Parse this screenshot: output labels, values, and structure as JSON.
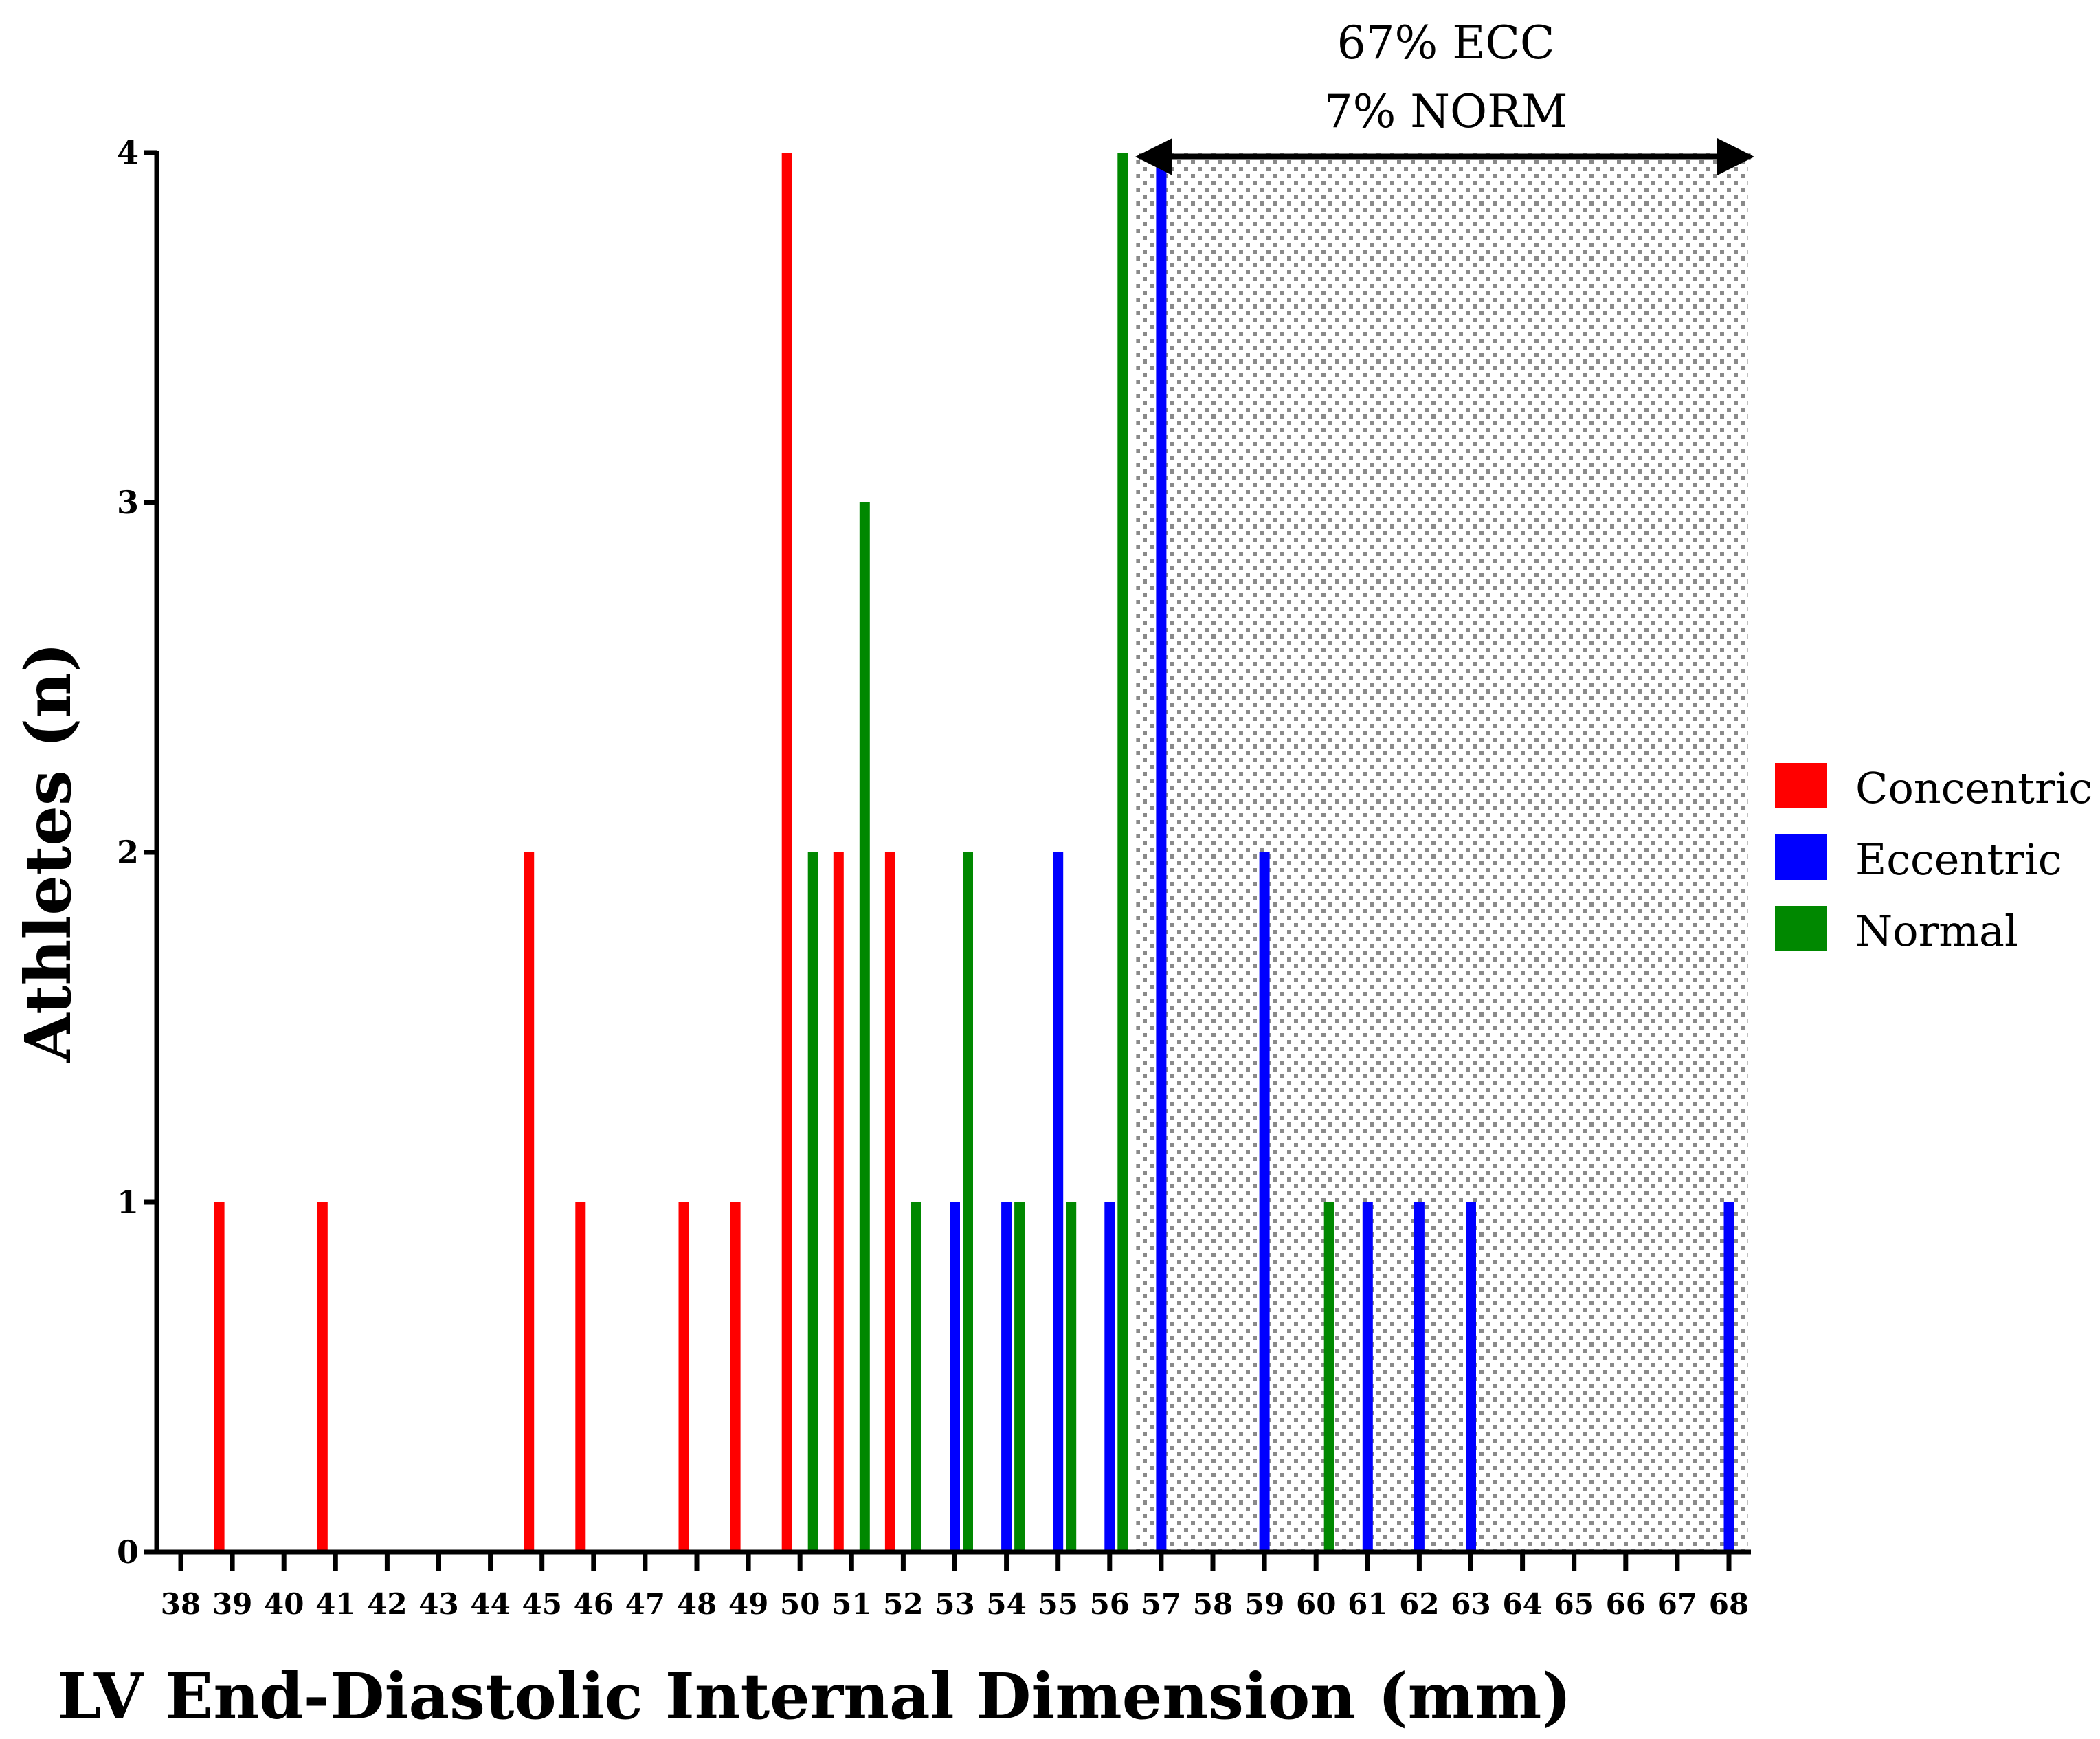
{
  "chart_data": {
    "type": "bar",
    "title": "",
    "xlabel": "LV End-Diastolic Internal Dimension (mm)",
    "ylabel": "Athletes (n)",
    "ylim": [
      0,
      4
    ],
    "yticks": [
      "0",
      "1",
      "2",
      "3",
      "4"
    ],
    "categories": [
      "38",
      "39",
      "40",
      "41",
      "42",
      "43",
      "44",
      "45",
      "46",
      "47",
      "48",
      "49",
      "50",
      "51",
      "52",
      "53",
      "54",
      "55",
      "56",
      "57",
      "58",
      "59",
      "60",
      "61",
      "62",
      "63",
      "64",
      "65",
      "66",
      "67",
      "68"
    ],
    "series": [
      {
        "name": "Concentric",
        "color": "#ff0000",
        "points": [
          {
            "x": "39",
            "y": 1
          },
          {
            "x": "41",
            "y": 1
          },
          {
            "x": "45",
            "y": 2
          },
          {
            "x": "46",
            "y": 1
          },
          {
            "x": "48",
            "y": 1
          },
          {
            "x": "49",
            "y": 1
          },
          {
            "x": "50",
            "y": 4
          },
          {
            "x": "51",
            "y": 2
          },
          {
            "x": "52",
            "y": 2
          }
        ]
      },
      {
        "name": "Eccentric",
        "color": "#0000ff",
        "points": [
          {
            "x": "53",
            "y": 1
          },
          {
            "x": "54",
            "y": 1
          },
          {
            "x": "55",
            "y": 2
          },
          {
            "x": "56",
            "y": 1
          },
          {
            "x": "57",
            "y": 4
          },
          {
            "x": "59",
            "y": 2
          },
          {
            "x": "61",
            "y": 1
          },
          {
            "x": "62",
            "y": 1
          },
          {
            "x": "63",
            "y": 1
          },
          {
            "x": "68",
            "y": 1
          }
        ]
      },
      {
        "name": "Normal",
        "color": "#008800",
        "points": [
          {
            "x": "50",
            "y": 2
          },
          {
            "x": "51",
            "y": 3
          },
          {
            "x": "52",
            "y": 1
          },
          {
            "x": "53",
            "y": 2
          },
          {
            "x": "54",
            "y": 1
          },
          {
            "x": "55",
            "y": 1
          },
          {
            "x": "56",
            "y": 4
          },
          {
            "x": "60",
            "y": 1
          }
        ]
      }
    ],
    "shaded_region": {
      "from": "57",
      "to": "68",
      "pattern": "dotted",
      "annotation": [
        "67% ECC",
        "7% NORM"
      ]
    },
    "legend_position": "right"
  }
}
